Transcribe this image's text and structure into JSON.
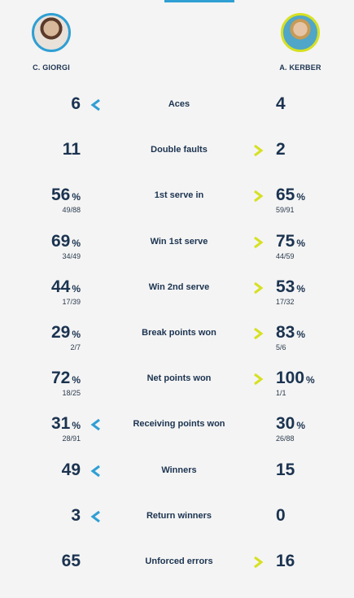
{
  "players": {
    "left": {
      "name": "C. GIORGI",
      "ring_color": "#2f9fd4"
    },
    "right": {
      "name": "A. KERBER",
      "ring_color": "#d6e021"
    }
  },
  "colors": {
    "left_arrow": "#2f9fd4",
    "right_arrow": "#d6e021",
    "text": "#1b3350"
  },
  "stats": [
    {
      "label": "Aces",
      "left": "6",
      "left_pct": "",
      "left_sub": "",
      "right": "4",
      "right_pct": "",
      "right_sub": "",
      "leader": "left"
    },
    {
      "label": "Double faults",
      "left": "11",
      "left_pct": "",
      "left_sub": "",
      "right": "2",
      "right_pct": "",
      "right_sub": "",
      "leader": "right"
    },
    {
      "label": "1st serve in",
      "left": "56",
      "left_pct": "%",
      "left_sub": "49/88",
      "right": "65",
      "right_pct": "%",
      "right_sub": "59/91",
      "leader": "right"
    },
    {
      "label": "Win 1st serve",
      "left": "69",
      "left_pct": "%",
      "left_sub": "34/49",
      "right": "75",
      "right_pct": "%",
      "right_sub": "44/59",
      "leader": "right"
    },
    {
      "label": "Win 2nd serve",
      "left": "44",
      "left_pct": "%",
      "left_sub": "17/39",
      "right": "53",
      "right_pct": "%",
      "right_sub": "17/32",
      "leader": "right"
    },
    {
      "label": "Break points won",
      "left": "29",
      "left_pct": "%",
      "left_sub": "2/7",
      "right": "83",
      "right_pct": "%",
      "right_sub": "5/6",
      "leader": "right"
    },
    {
      "label": "Net points won",
      "left": "72",
      "left_pct": "%",
      "left_sub": "18/25",
      "right": "100",
      "right_pct": "%",
      "right_sub": "1/1",
      "leader": "right"
    },
    {
      "label": "Receiving points won",
      "left": "31",
      "left_pct": "%",
      "left_sub": "28/91",
      "right": "30",
      "right_pct": "%",
      "right_sub": "26/88",
      "leader": "left"
    },
    {
      "label": "Winners",
      "left": "49",
      "left_pct": "",
      "left_sub": "",
      "right": "15",
      "right_pct": "",
      "right_sub": "",
      "leader": "left"
    },
    {
      "label": "Return winners",
      "left": "3",
      "left_pct": "",
      "left_sub": "",
      "right": "0",
      "right_pct": "",
      "right_sub": "",
      "leader": "left"
    },
    {
      "label": "Unforced errors",
      "left": "65",
      "left_pct": "",
      "left_sub": "",
      "right": "16",
      "right_pct": "",
      "right_sub": "",
      "leader": "right"
    }
  ]
}
